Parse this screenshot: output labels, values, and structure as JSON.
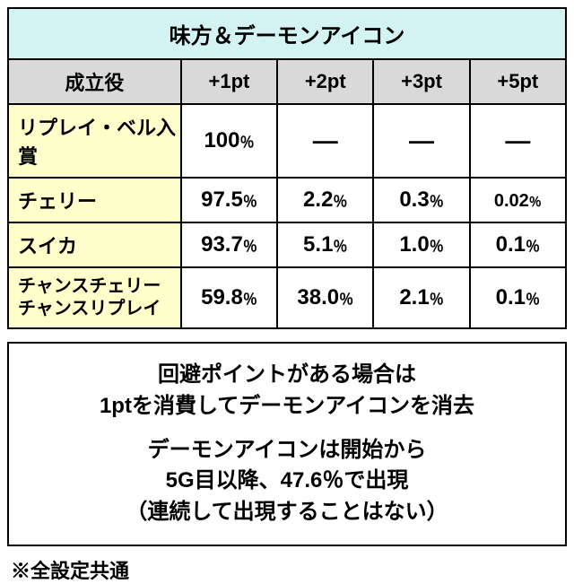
{
  "title": "味方＆デーモンアイコン",
  "columns": {
    "label": "成立役",
    "pt1": "+1pt",
    "pt2": "+2pt",
    "pt3": "+3pt",
    "pt5": "+5pt"
  },
  "rows": [
    {
      "label": "リプレイ・ベル入賞",
      "pt1": "100",
      "pt2": "—",
      "pt3": "—",
      "pt5": "—",
      "dash2": true,
      "dash3": true,
      "dash5": true
    },
    {
      "label": "チェリー",
      "pt1": "97.5",
      "pt2": "2.2",
      "pt3": "0.3",
      "pt5": "0.02"
    },
    {
      "label": "スイカ",
      "pt1": "93.7",
      "pt2": "5.1",
      "pt3": "1.0",
      "pt5": "0.1"
    },
    {
      "label": "チャンスチェリー\nチャンスリプレイ",
      "pt1": "59.8",
      "pt2": "38.0",
      "pt3": "2.1",
      "pt5": "0.1",
      "multi": true
    }
  ],
  "notes": {
    "p1l1": "回避ポイントがある場合は",
    "p1l2": "1ptを消費してデーモンアイコンを消去",
    "p2l1": "デーモンアイコンは開始から",
    "p2l2": "5G目以降、47.6％で出現",
    "p2l3": "（連続して出現することはない）"
  },
  "footnote": "※全設定共通",
  "colors": {
    "title_bg": "#d4f4f4",
    "header_bg": "#d9d9d9",
    "label_bg": "#ffffcc",
    "border": "#000000",
    "background": "#ffffff"
  },
  "typography": {
    "title_fontsize": 24,
    "header_fontsize": 22,
    "cell_fontsize": 22,
    "pct_fontsize": 16,
    "note_fontsize": 24,
    "footnote_fontsize": 22,
    "font_family": "Hiragino Kaku Gothic ProN",
    "font_weight": "bold"
  },
  "structure_type": "table"
}
